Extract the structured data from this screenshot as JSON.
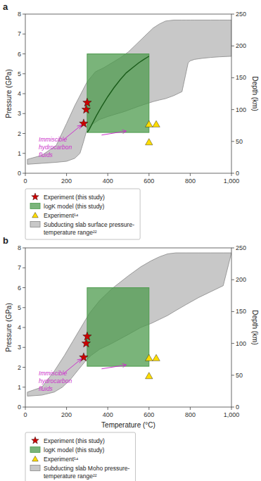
{
  "chart_data": [
    {
      "type": "scatter",
      "title": "a",
      "y_label": "Pressure (GPa)",
      "y2_label": "Depth (km)",
      "xlim": [
        0,
        1000
      ],
      "xticks": [
        0,
        200,
        400,
        600,
        800,
        {
          "value": 1000,
          "label": "1,000"
        }
      ],
      "ylim": [
        0,
        8
      ],
      "yticks": [
        0,
        1,
        2,
        3,
        4,
        5,
        6,
        7,
        8
      ],
      "y2lim": [
        0,
        250
      ],
      "y2ticks": [
        0,
        50,
        100,
        150,
        200,
        250
      ],
      "grid": false,
      "legend": "bottom",
      "series": [
        {
          "name": "Experiment (this study)",
          "type": "scatter",
          "marker": "star",
          "color": "#cc0000",
          "x": [
            283,
            295,
            300
          ],
          "values": [
            2.5,
            3.2,
            3.55
          ]
        },
        {
          "name": "logK model (this study)",
          "type": "rect",
          "color": "#4e9b4e",
          "x": [
            300,
            600
          ],
          "values": [
            2.05,
            6.0
          ]
        },
        {
          "name": "Experiment¹⁴",
          "type": "scatter",
          "marker": "triangle",
          "color": "#ffdd00",
          "x": [
            600,
            635,
            600
          ],
          "values": [
            1.55,
            2.45,
            2.45
          ]
        },
        {
          "name": "Subducting slab surface pressure-\ntemperature range²²",
          "type": "area",
          "color": "#c8c8c8",
          "x": [
            10,
            80,
            150,
            200,
            240,
            265,
            280,
            295,
            310,
            330,
            360,
            400,
            480,
            560,
            620,
            650,
            680,
            720,
            760,
            790,
            800,
            820,
            840,
            860,
            900,
            940,
            980,
            1000,
            1000,
            980,
            940,
            900,
            860,
            820,
            800,
            780,
            760,
            720,
            680,
            650,
            620,
            580,
            540,
            500,
            460,
            420,
            380,
            340,
            300,
            280,
            260,
            240,
            200,
            150,
            80,
            10
          ],
          "values": [
            0.45,
            0.5,
            0.55,
            0.6,
            0.75,
            1.0,
            1.5,
            2.05,
            2.3,
            2.5,
            2.7,
            2.85,
            3.1,
            3.4,
            3.6,
            3.68,
            3.75,
            3.9,
            4.1,
            5.55,
            5.65,
            5.72,
            5.75,
            5.78,
            5.82,
            5.85,
            5.87,
            5.88,
            7.7,
            7.7,
            7.7,
            7.7,
            7.7,
            7.7,
            7.7,
            7.7,
            7.7,
            7.7,
            7.65,
            7.5,
            7.3,
            6.9,
            6.5,
            6.1,
            5.8,
            5.55,
            5.3,
            5.1,
            4.6,
            4.2,
            3.8,
            3.4,
            2.5,
            1.4,
            0.9,
            0.7
          ]
        },
        {
          "type": "line",
          "color": "#1a5c1a",
          "x": [
            300,
            310,
            325,
            345,
            370,
            400,
            430,
            460,
            490,
            520,
            550,
            575,
            595,
            600
          ],
          "values": [
            2.05,
            2.2,
            2.5,
            2.9,
            3.35,
            3.85,
            4.3,
            4.7,
            5.05,
            5.3,
            5.55,
            5.72,
            5.85,
            5.88
          ]
        }
      ],
      "annotations": [
        {
          "text": "Immiscible\nhydrocarbon\nfluids",
          "x": 65,
          "y": 1.85,
          "color": "#cc33cc",
          "arrows": [
            {
              "x": [
                185,
                272
              ],
              "y": [
                1.68,
                2.42
              ]
            },
            {
              "x": [
                370,
                490
              ],
              "y": [
                1.92,
                2.12
              ]
            }
          ]
        }
      ]
    },
    {
      "type": "scatter",
      "title": "b",
      "x_label": "Temperature (°C)",
      "y_label": "Pressure (GPa)",
      "y2_label": "Depth (km)",
      "xlim": [
        0,
        1000
      ],
      "xticks": [
        0,
        200,
        400,
        600,
        800,
        {
          "value": 1000,
          "label": "1,000"
        }
      ],
      "ylim": [
        0,
        8
      ],
      "yticks": [
        0,
        1,
        2,
        3,
        4,
        5,
        6,
        7,
        8
      ],
      "y2lim": [
        0,
        250
      ],
      "y2ticks": [
        0,
        50,
        100,
        150,
        200,
        250
      ],
      "grid": false,
      "legend": "bottom",
      "series": [
        {
          "name": "Experiment (this study)",
          "type": "scatter",
          "marker": "star",
          "color": "#cc0000",
          "x": [
            283,
            295,
            300
          ],
          "values": [
            2.5,
            3.2,
            3.55
          ]
        },
        {
          "name": "logK model (this study)",
          "type": "rect",
          "color": "#4e9b4e",
          "x": [
            300,
            600
          ],
          "values": [
            2.05,
            6.0
          ]
        },
        {
          "name": "Experiment¹⁴",
          "type": "scatter",
          "marker": "triangle",
          "color": "#ffdd00",
          "x": [
            600,
            635,
            600
          ],
          "values": [
            1.55,
            2.45,
            2.45
          ]
        },
        {
          "name": "Subducting slab Moho pressure-\ntemperature range²²",
          "type": "area",
          "color": "#c8c8c8",
          "x": [
            10,
            80,
            140,
            180,
            220,
            255,
            275,
            295,
            320,
            360,
            420,
            500,
            560,
            610,
            650,
            690,
            730,
            780,
            840,
            900,
            960,
            1000,
            1000,
            960,
            900,
            840,
            780,
            730,
            690,
            650,
            610,
            560,
            500,
            420,
            360,
            310,
            270,
            230,
            190,
            140,
            80,
            10
          ],
          "values": [
            0.55,
            0.6,
            0.75,
            1.0,
            1.4,
            1.85,
            2.1,
            2.35,
            2.6,
            2.9,
            3.2,
            3.65,
            4.0,
            4.2,
            4.4,
            4.6,
            4.85,
            5.15,
            5.5,
            5.8,
            6.1,
            7.75,
            7.75,
            7.75,
            7.75,
            7.75,
            7.75,
            7.75,
            7.7,
            7.55,
            7.35,
            7.05,
            6.6,
            5.95,
            5.35,
            4.7,
            4.0,
            3.3,
            2.6,
            1.8,
            1.0,
            0.75
          ]
        }
      ],
      "annotations": [
        {
          "text": "Immiscible\nhydrocarbon\nfluids",
          "x": 65,
          "y": 1.85,
          "color": "#cc33cc",
          "arrows": [
            {
              "x": [
                185,
                272
              ],
              "y": [
                1.68,
                2.42
              ]
            },
            {
              "x": [
                370,
                490
              ],
              "y": [
                1.92,
                2.12
              ]
            }
          ]
        }
      ]
    }
  ]
}
